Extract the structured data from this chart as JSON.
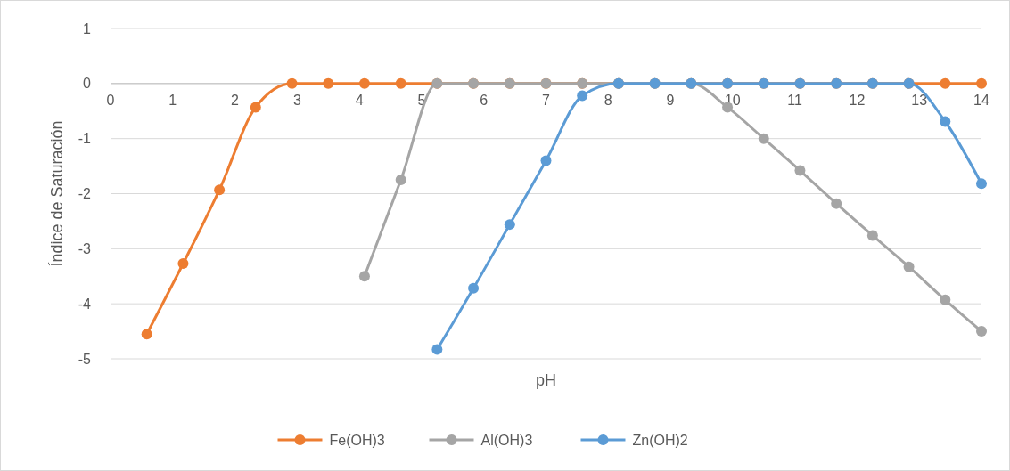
{
  "chart_data": {
    "type": "line",
    "xlabel": "pH",
    "ylabel": "Índice de Saturación",
    "x": [
      0.583,
      1.167,
      1.75,
      2.333,
      2.917,
      3.5,
      4.083,
      4.667,
      5.25,
      5.833,
      6.417,
      7,
      7.583,
      8.167,
      8.75,
      9.333,
      9.917,
      10.5,
      11.083,
      11.667,
      12.25,
      12.833,
      13.417,
      14
    ],
    "series": [
      {
        "name": "Fe(OH)3",
        "color": "#ed7d31",
        "values": [
          -4.55,
          -3.27,
          -1.93,
          -0.43,
          0,
          0,
          0,
          0,
          0,
          0,
          0,
          0,
          0,
          0,
          0,
          0,
          0,
          0,
          0,
          0,
          0,
          0,
          0,
          0
        ]
      },
      {
        "name": "Al(OH)3",
        "color": "#a5a5a5",
        "values": [
          null,
          null,
          null,
          null,
          null,
          null,
          -3.5,
          -1.75,
          0,
          0,
          0,
          0,
          0,
          0,
          0,
          0,
          -0.43,
          -1.0,
          -1.58,
          -2.18,
          -2.76,
          -3.33,
          -3.93,
          -4.5
        ]
      },
      {
        "name": "Zn(OH)2",
        "color": "#5b9bd5",
        "values": [
          null,
          null,
          null,
          null,
          null,
          null,
          null,
          null,
          -4.83,
          -3.72,
          -2.56,
          -1.4,
          -0.22,
          0,
          0,
          0,
          0,
          0,
          0,
          0,
          0,
          0,
          -0.69,
          -1.82
        ]
      }
    ],
    "xlim": [
      0,
      14
    ],
    "xticks": [
      0,
      1,
      2,
      3,
      4,
      5,
      6,
      7,
      8,
      9,
      10,
      11,
      12,
      13,
      14
    ],
    "ylim": [
      -5,
      1
    ],
    "yticks": [
      -5,
      -4,
      -3,
      -2,
      -1,
      0,
      1
    ],
    "grid": "y",
    "legend": "bottom",
    "marker": "circle",
    "line_style": "solid"
  }
}
